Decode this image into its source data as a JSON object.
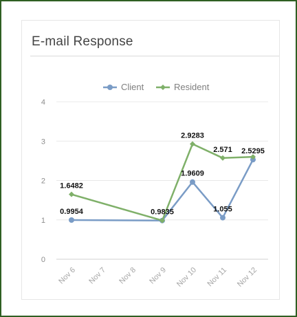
{
  "title": "E-mail Response",
  "chart_data": {
    "type": "line",
    "title": "E-mail Response",
    "categories": [
      "Nov 6",
      "Nov 7",
      "Nov 8",
      "Nov 9",
      "Nov 10",
      "Nov 11",
      "Nov 12"
    ],
    "series": [
      {
        "name": "Client",
        "color": "#7a9cc6",
        "points": [
          {
            "x": "Nov 6",
            "y": 0.9954,
            "label": "0.9954"
          },
          {
            "x": "Nov 9",
            "y": 0.9835,
            "label": "0.9835"
          },
          {
            "x": "Nov 10",
            "y": 1.9609,
            "label": "1.9609"
          },
          {
            "x": "Nov 11",
            "y": 1.055,
            "label": "1.055"
          },
          {
            "x": "Nov 12",
            "y": 2.5295,
            "label": "2.5295"
          }
        ]
      },
      {
        "name": "Resident",
        "color": "#7fb069",
        "points": [
          {
            "x": "Nov 6",
            "y": 1.6482,
            "label": "1.6482"
          },
          {
            "x": "Nov 9",
            "y": 0.9835,
            "label": ""
          },
          {
            "x": "Nov 10",
            "y": 2.9283,
            "label": "2.9283"
          },
          {
            "x": "Nov 11",
            "y": 2.571,
            "label": "2.571"
          },
          {
            "x": "Nov 12",
            "y": 2.6,
            "label": ""
          }
        ]
      }
    ],
    "ylim": [
      0,
      4
    ],
    "yticks": [
      0,
      1,
      2,
      3,
      4
    ],
    "grid": true,
    "legend": "top-center"
  }
}
